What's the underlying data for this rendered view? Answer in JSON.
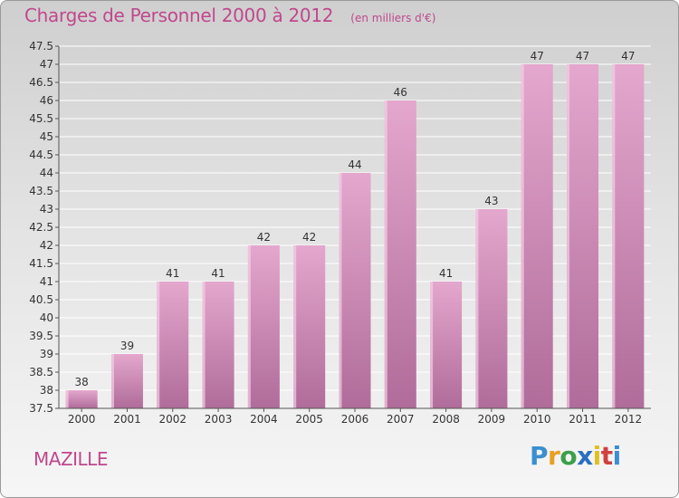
{
  "header": {
    "title": "Charges de Personnel 2000 à 2012",
    "subtitle": "(en milliers d'€)"
  },
  "commune": "MAZILLE",
  "logo": {
    "text": "Proxiti",
    "letters": [
      {
        "ch": "P",
        "color": "#3a8fd0"
      },
      {
        "ch": "r",
        "color": "#e8a020"
      },
      {
        "ch": "o",
        "color": "#3aa04a"
      },
      {
        "ch": "x",
        "color": "#2a6fc0"
      },
      {
        "ch": "i",
        "color": "#e0c020"
      },
      {
        "ch": "t",
        "color": "#d04040"
      },
      {
        "ch": "i",
        "color": "#3a8fd0"
      }
    ]
  },
  "colors": {
    "bar_top": "#e4a7cd",
    "bar_bottom": "#b06c9a",
    "grid": "#ffffff",
    "axis": "#555555",
    "title": "#c0488c"
  },
  "chart_data": {
    "type": "bar",
    "categories": [
      "2000",
      "2001",
      "2002",
      "2003",
      "2004",
      "2005",
      "2006",
      "2007",
      "2008",
      "2009",
      "2010",
      "2011",
      "2012"
    ],
    "values": [
      38,
      39,
      41,
      41,
      42,
      42,
      44,
      46,
      41,
      43,
      47,
      47,
      47
    ],
    "data_labels": [
      "38",
      "39",
      "41",
      "41",
      "42",
      "42",
      "44",
      "46",
      "41",
      "43",
      "47",
      "47",
      "47"
    ],
    "ylim": [
      37.5,
      47.5
    ],
    "yticks": [
      37.5,
      38,
      38.5,
      39,
      39.5,
      40,
      40.5,
      41,
      41.5,
      42,
      42.5,
      43,
      43.5,
      44,
      44.5,
      45,
      45.5,
      46,
      46.5,
      47,
      47.5
    ],
    "ytick_labels": [
      "37.5",
      "38",
      "38.5",
      "39",
      "39.5",
      "40",
      "40.5",
      "41",
      "41.5",
      "42",
      "42.5",
      "43",
      "43.5",
      "44",
      "44.5",
      "45",
      "45.5",
      "46",
      "46.5",
      "47",
      "47.5"
    ],
    "grid": true,
    "xlabel": "",
    "ylabel": ""
  }
}
